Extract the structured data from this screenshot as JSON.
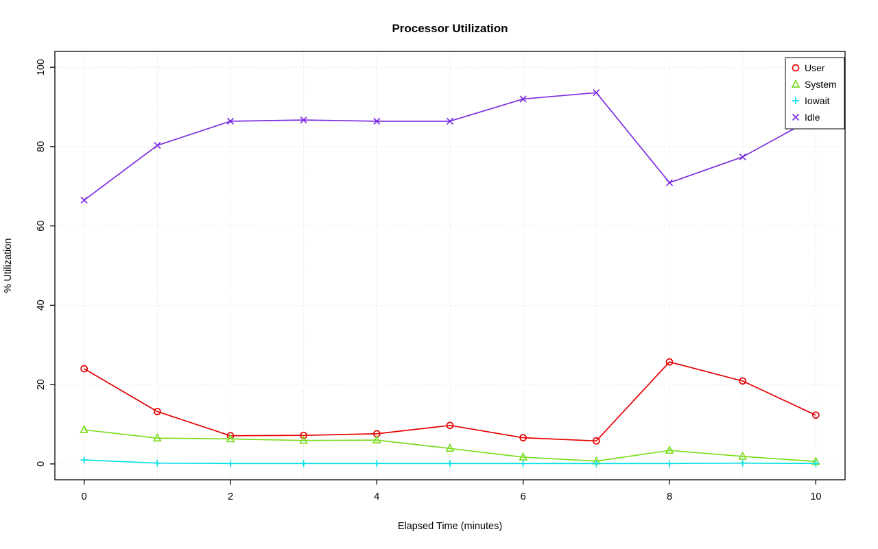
{
  "chart_data": {
    "type": "line",
    "title": "Processor Utilization",
    "xlabel": "Elapsed Time (minutes)",
    "ylabel": "% Utilization",
    "xlim": [
      0,
      10
    ],
    "ylim": [
      0,
      100
    ],
    "xticks": [
      0,
      2,
      4,
      6,
      8,
      10
    ],
    "yticks": [
      0,
      20,
      40,
      60,
      80,
      100
    ],
    "x": [
      0,
      1,
      2,
      3,
      4,
      5,
      6,
      7,
      8,
      9,
      10
    ],
    "grid": {
      "on": true,
      "x_every": 1,
      "y_every": 20,
      "style": "dotted",
      "color": "#d4d4d4"
    },
    "legend": {
      "position": "top-right",
      "border": "#000000",
      "background": "#ffffff"
    },
    "series": [
      {
        "name": "User",
        "marker": "circle",
        "color": "#e60000",
        "values": [
          24.0,
          13.2,
          7.1,
          7.2,
          7.6,
          9.7,
          6.6,
          5.8,
          25.7,
          20.9,
          12.3
        ]
      },
      {
        "name": "System",
        "marker": "triangle",
        "color": "#7bdc1e",
        "values": [
          8.6,
          6.5,
          6.3,
          5.9,
          6.0,
          3.9,
          1.7,
          0.7,
          3.4,
          1.9,
          0.6
        ]
      },
      {
        "name": "Iowait",
        "marker": "plus",
        "color": "#00e0e6",
        "values": [
          1.0,
          0.2,
          0.1,
          0.1,
          0.1,
          0.1,
          0.1,
          0.1,
          0.1,
          0.2,
          0.1
        ]
      },
      {
        "name": "Idle",
        "marker": "x",
        "color": "#7b2be2",
        "values": [
          66.5,
          80.3,
          86.4,
          86.7,
          86.4,
          86.4,
          92.0,
          93.6,
          70.9,
          77.4,
          87.5
        ]
      }
    ]
  }
}
